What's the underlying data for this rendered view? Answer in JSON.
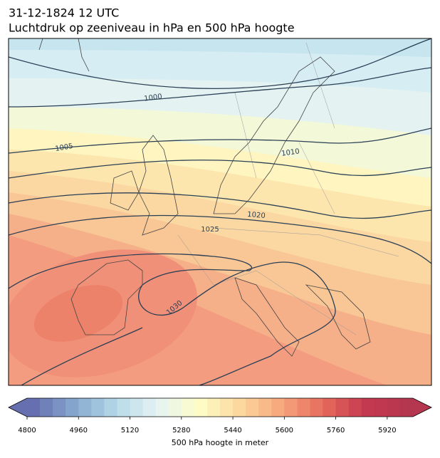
{
  "header": {
    "time": "31-12-1824 12 UTC",
    "title": "Luchtdruk op zeeniveau in hPa en 500 hPa hoogte"
  },
  "map": {
    "contour_labels": [
      1000,
      1005,
      1010,
      1020,
      1025,
      1030
    ]
  },
  "colorbar": {
    "vmin": 4800,
    "vmax": 6000,
    "step": 40,
    "colors": [
      "#6670b1",
      "#86a8cf",
      "#b6d9e8",
      "#e6f4f3",
      "#fefcc6",
      "#fcd79d",
      "#f7a57c",
      "#e56a5c",
      "#c5394f",
      "#b5364f"
    ],
    "ticks": [
      4800,
      4960,
      5120,
      5280,
      5440,
      5600,
      5760,
      5920
    ],
    "label": "500 hPa hoogte in meter"
  }
}
